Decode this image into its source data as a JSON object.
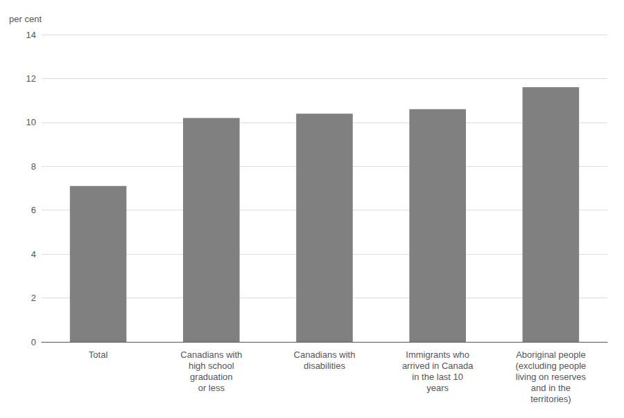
{
  "chart_data": {
    "type": "bar",
    "ylabel": "per cent",
    "categories": [
      "Total",
      "Canadians with\nhigh school\ngraduation\nor less",
      "Canadians with\ndisabilities",
      "Immigrants who\narrived in Canada\nin the last 10\nyears",
      "Aboriginal people\n(excluding people\nliving on reserves\nand in the\nterritories)"
    ],
    "values": [
      7.1,
      10.2,
      10.4,
      10.6,
      11.6
    ],
    "color": "#808080",
    "ylim": [
      0,
      14
    ],
    "yticks": [
      0,
      2,
      4,
      6,
      8,
      10,
      12,
      14
    ],
    "grid": true
  }
}
